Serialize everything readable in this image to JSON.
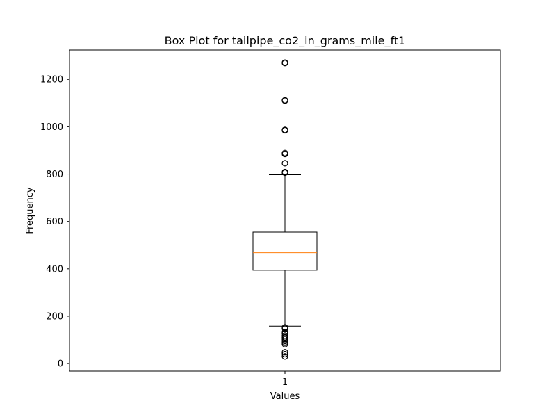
{
  "chart_data": {
    "type": "box",
    "title": "Box Plot for tailpipe_co2_in_grams_mile_ft1",
    "xlabel": "Values",
    "ylabel": "Frequency",
    "categories": [
      "1"
    ],
    "ylim": [
      -32,
      1324
    ],
    "yticks": [
      0,
      200,
      400,
      600,
      800,
      1000,
      1200
    ],
    "ytick_labels": [
      "0",
      "200",
      "400",
      "600",
      "800",
      "1000",
      "1200"
    ],
    "grid": false,
    "legend": "none",
    "box": {
      "q1": 394,
      "median": 468,
      "q3": 555,
      "whisker_low": 158,
      "whisker_high": 797,
      "outliers_high": [
        806,
        809,
        846,
        885,
        889,
        985,
        987,
        1110,
        1112,
        1269,
        1271
      ],
      "outliers_low": [
        30,
        40,
        48,
        82,
        88,
        95,
        103,
        110,
        118,
        128,
        133,
        148,
        153
      ]
    },
    "colors": {
      "box": "#000000",
      "median": "#ff7f0e",
      "whisker": "#000000",
      "outlier": "#000000"
    }
  }
}
